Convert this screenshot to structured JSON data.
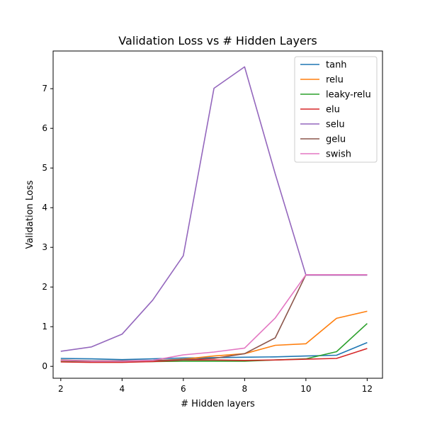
{
  "chart_data": {
    "type": "line",
    "title": "Validation Loss vs # Hidden Layers",
    "xlabel": "# Hidden layers",
    "ylabel": "Validation Loss",
    "xlim": [
      1.75,
      12.5
    ],
    "ylim": [
      -0.3,
      7.95
    ],
    "xticks": [
      2,
      4,
      6,
      8,
      10,
      12
    ],
    "yticks": [
      0,
      1,
      2,
      3,
      4,
      5,
      6,
      7
    ],
    "grid": false,
    "legend_position": "top-right",
    "x": [
      2,
      3,
      4,
      5,
      6,
      7,
      8,
      9,
      10,
      11,
      12
    ],
    "series": [
      {
        "name": "tanh",
        "color": "#1f77b4",
        "values": [
          0.2,
          0.19,
          0.17,
          0.19,
          0.21,
          0.22,
          0.23,
          0.24,
          0.26,
          0.28,
          0.6
        ]
      },
      {
        "name": "relu",
        "color": "#ff7f0e",
        "values": [
          0.14,
          0.12,
          0.12,
          0.14,
          0.18,
          0.26,
          0.32,
          0.53,
          0.57,
          1.21,
          1.39
        ]
      },
      {
        "name": "leaky-relu",
        "color": "#2ca02c",
        "values": [
          0.12,
          0.11,
          0.11,
          0.12,
          0.13,
          0.13,
          0.13,
          0.16,
          0.19,
          0.37,
          1.08
        ]
      },
      {
        "name": "elu",
        "color": "#d62728",
        "values": [
          0.11,
          0.1,
          0.1,
          0.12,
          0.16,
          0.16,
          0.15,
          0.16,
          0.18,
          0.2,
          0.45
        ]
      },
      {
        "name": "selu",
        "color": "#9467bd",
        "values": [
          0.38,
          0.49,
          0.81,
          1.67,
          2.79,
          7.01,
          7.55,
          4.85,
          2.3,
          2.3,
          2.3
        ]
      },
      {
        "name": "gelu",
        "color": "#8c564b",
        "values": [
          0.16,
          0.14,
          0.14,
          0.15,
          0.17,
          0.2,
          0.32,
          0.72,
          2.31,
          2.31,
          2.31
        ]
      },
      {
        "name": "swish",
        "color": "#e377c2",
        "values": [
          0.15,
          0.13,
          0.13,
          0.15,
          0.29,
          0.36,
          0.46,
          1.22,
          2.31,
          2.31,
          2.31
        ]
      }
    ]
  }
}
